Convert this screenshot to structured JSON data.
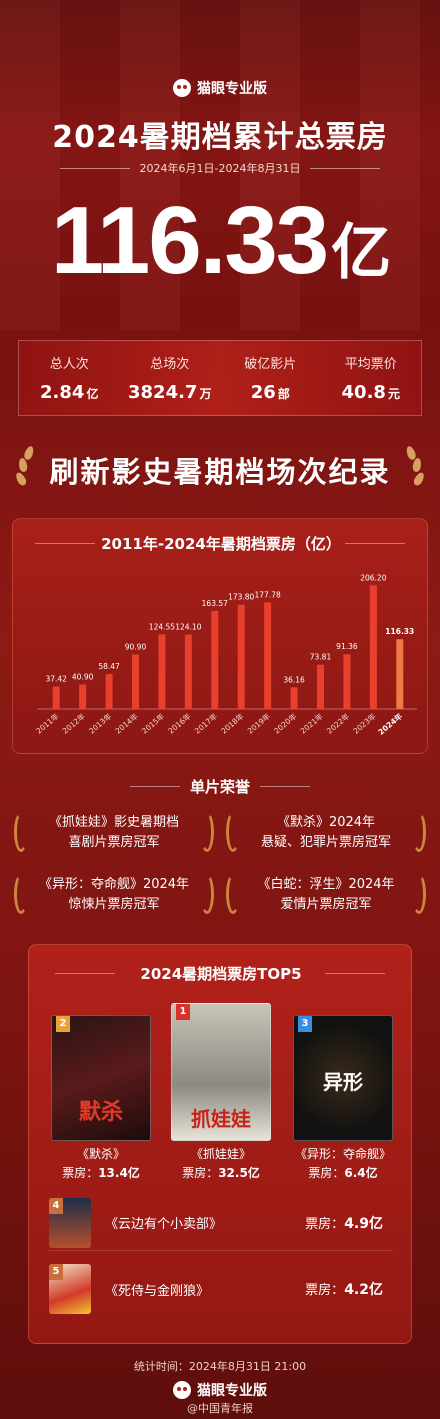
{
  "header": {
    "brand": "猫眼专业版",
    "title": "2024暑期档累计总票房",
    "date_range": "2024年6月1日-2024年8月31日",
    "total_number": "116.33",
    "total_unit": "亿"
  },
  "stats": [
    {
      "label": "总人次",
      "value": "2.84",
      "unit": "亿"
    },
    {
      "label": "总场次",
      "value": "3824.7",
      "unit": "万"
    },
    {
      "label": "破亿影片",
      "value": "26",
      "unit": "部"
    },
    {
      "label": "平均票价",
      "value": "40.8",
      "unit": "元"
    }
  ],
  "record_banner": "刷新影史暑期档场次纪录",
  "chart_data": {
    "type": "bar",
    "title": "2011年-2024年暑期档票房（亿）",
    "categories": [
      "2011年",
      "2012年",
      "2013年",
      "2014年",
      "2015年",
      "2016年",
      "2017年",
      "2018年",
      "2019年",
      "2020年",
      "2021年",
      "2022年",
      "2023年",
      "2024年"
    ],
    "values": [
      37.42,
      40.9,
      58.47,
      90.9,
      124.55,
      124.1,
      163.57,
      173.8,
      177.78,
      36.16,
      73.81,
      91.36,
      206.2,
      116.33
    ],
    "value_labels": [
      "37.42",
      "40.90",
      "58.47",
      "90.90",
      "124.55",
      "124.10",
      "163.57",
      "173.80",
      "177.78",
      "36.16",
      "73.81",
      "91.36",
      "206.20",
      "116.33"
    ],
    "highlight_index": 13,
    "colors": {
      "bar": "#e8402c",
      "highlight": "#f07a45"
    },
    "ylim": [
      0,
      220
    ],
    "grid": false,
    "legend": "none"
  },
  "honors": {
    "title": "单片荣誉",
    "items": [
      {
        "line1": "《抓娃娃》影史暑期档",
        "line2": "喜剧片票房冠军"
      },
      {
        "line1": "《默杀》2024年",
        "line2": "悬疑、犯罪片票房冠军"
      },
      {
        "line1": "《异形：夺命舰》2024年",
        "line2": "惊悚片票房冠军"
      },
      {
        "line1": "《白蛇：浮生》2024年",
        "line2": "爱情片票房冠军"
      }
    ]
  },
  "top5": {
    "title": "2024暑期档票房TOP5",
    "box_label": "票房：",
    "posters": [
      {
        "rank": "2",
        "name": "《默杀》",
        "box": "13.4亿",
        "rank_color": "#e8a23a",
        "poster_title": "默杀"
      },
      {
        "rank": "1",
        "name": "《抓娃娃》",
        "box": "32.5亿",
        "rank_color": "#d9302a",
        "poster_title": "抓娃娃"
      },
      {
        "rank": "3",
        "name": "《异形：夺命舰》",
        "box": "6.4亿",
        "rank_color": "#3b8de0",
        "poster_title": "异形"
      }
    ],
    "list": [
      {
        "rank": "4",
        "name": "《云边有个小卖部》",
        "box": "4.9亿"
      },
      {
        "rank": "5",
        "name": "《死侍与金刚狼》",
        "box": "4.2亿"
      }
    ]
  },
  "footer": {
    "time": "统计时间：2024年8月31日 21:00",
    "brand": "猫眼专业版",
    "source": "@中国青年报"
  }
}
